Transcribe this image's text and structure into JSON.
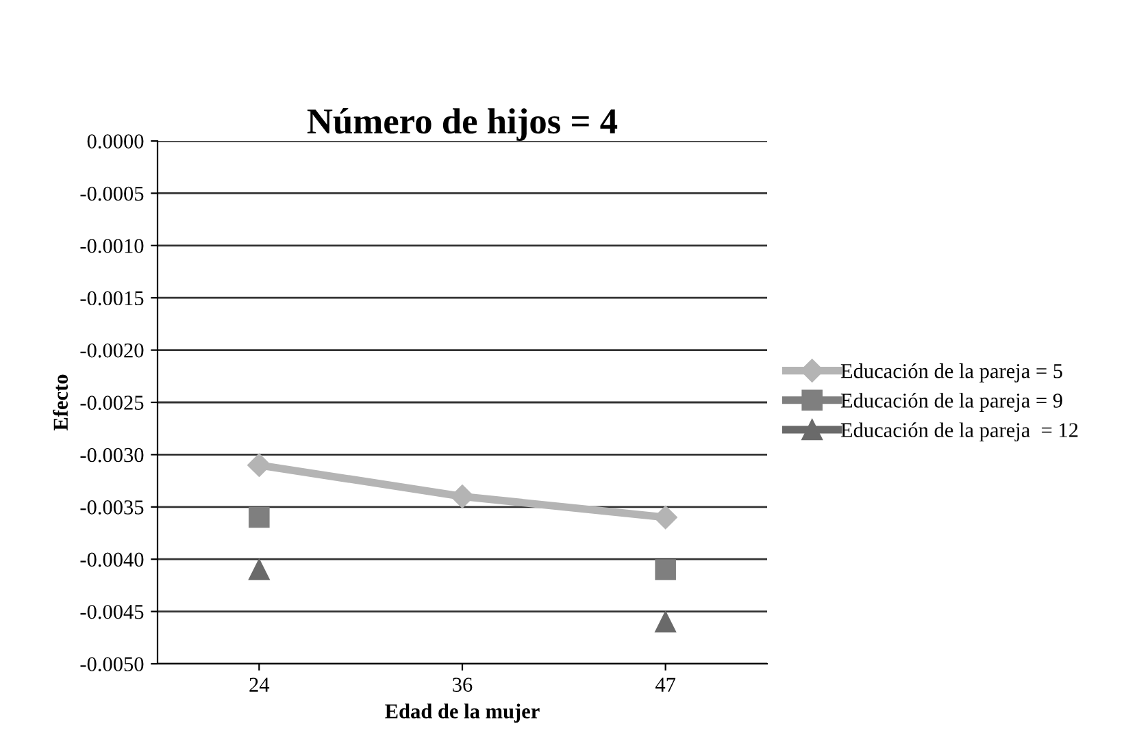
{
  "chart_data": {
    "type": "line",
    "title": "Número de hijos = 4",
    "xlabel": "Edad de la mujer",
    "ylabel": "Efecto",
    "categories": [
      "24",
      "36",
      "47"
    ],
    "series": [
      {
        "name": "Educación de la pareja = 5",
        "color": "#b4b4b4",
        "marker": "diamond",
        "values": [
          -0.0031,
          -0.0034,
          -0.0036
        ]
      },
      {
        "name": "Educación de la pareja = 9",
        "type": "scatter",
        "color": "#7f7f7f",
        "marker": "square",
        "values": [
          -0.0036,
          null,
          -0.0041
        ]
      },
      {
        "name": "Educación de la pareja  = 12",
        "type": "scatter",
        "color": "#6a6a6a",
        "marker": "triangle",
        "values": [
          -0.0041,
          null,
          -0.0046
        ]
      }
    ],
    "ylim": [
      -0.005,
      0.0
    ],
    "yticks": [
      {
        "value": -0.005,
        "label": "-0.0050"
      },
      {
        "value": -0.0045,
        "label": "-0.0045"
      },
      {
        "value": -0.004,
        "label": "-0.0040"
      },
      {
        "value": -0.0035,
        "label": "-0.0035"
      },
      {
        "value": -0.003,
        "label": "-0.0030"
      },
      {
        "value": -0.0025,
        "label": "-0.0025"
      },
      {
        "value": -0.002,
        "label": "-0.0020"
      },
      {
        "value": -0.0015,
        "label": "-0.0015"
      },
      {
        "value": -0.001,
        "label": "-0.0010"
      },
      {
        "value": -0.0005,
        "label": "-0.0005"
      },
      {
        "value": 0.0,
        "label": "0.0000"
      }
    ],
    "grid": "y",
    "legend": "right",
    "line_style": "solid"
  }
}
